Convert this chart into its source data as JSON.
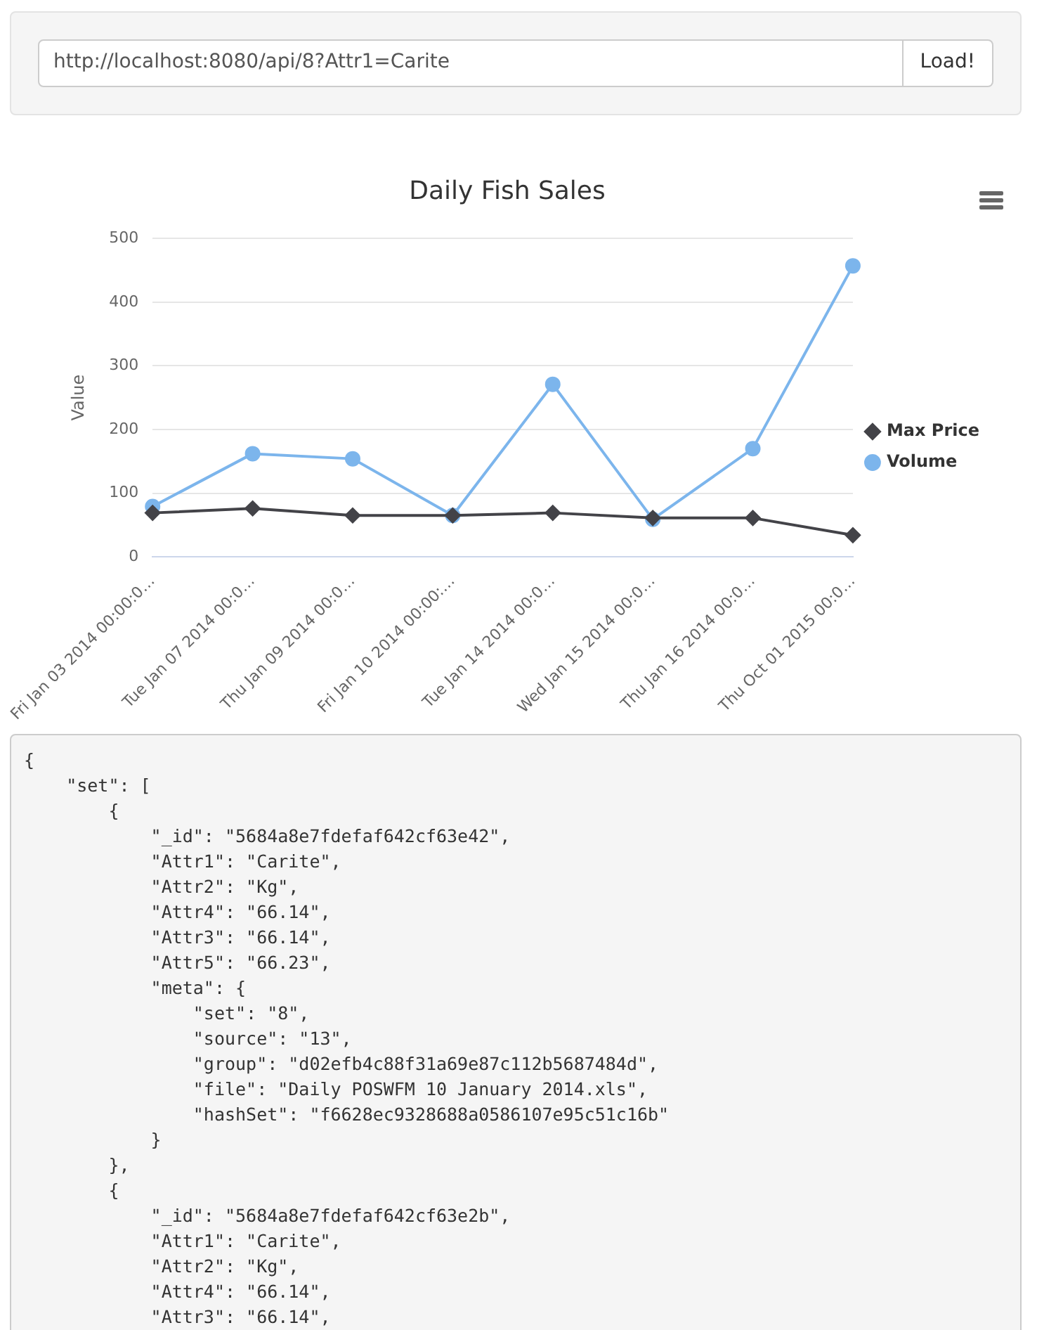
{
  "chart_data": [
    {
      "type": "other",
      "annotations": [
        "http://localhost:8080/api/8?Attr1=Carite",
        "Load!"
      ]
    },
    {
      "type": "line",
      "title": "Daily Fish Sales",
      "ylabel": "Value",
      "categories": [
        "Fri Jan 03 2014 00:00:0…",
        "Tue Jan 07 2014 00:0…",
        "Thu Jan 09 2014 00:0…",
        "Fri Jan 10 2014 00:00:…",
        "Tue Jan 14 2014 00:0…",
        "Wed Jan 15 2014 00:0…",
        "Thu Jan 16 2014 00:0…",
        "Thu Oct 01 2015 00:0…"
      ],
      "series": [
        {
          "name": "Volume",
          "color": "#7cb5ec",
          "marker": "circle",
          "values": [
            79,
            162,
            154,
            65,
            271,
            59,
            170,
            457
          ]
        },
        {
          "name": "Max Price",
          "color": "#434348",
          "marker": "diamond",
          "values": [
            69,
            76,
            65,
            65,
            69,
            61,
            61,
            34
          ]
        }
      ],
      "ylim": [
        0,
        500
      ],
      "yticks": [
        0,
        100,
        200,
        300,
        400,
        500
      ],
      "grid": "y",
      "legend": "right",
      "line_style": "solid"
    },
    {
      "type": "other",
      "annotations": [
        "{",
        "    \"set\": [",
        "        {",
        "            \"_id\": \"5684a8e7fdefaf642cf63e42\",",
        "            \"Attr1\": \"Carite\",",
        "            \"Attr2\": \"Kg\",",
        "            \"Attr4\": \"66.14\",",
        "            \"Attr3\": \"66.14\",",
        "            \"Attr5\": \"66.23\",",
        "            \"meta\": {",
        "                \"set\": \"8\",",
        "                \"source\": \"13\",",
        "                \"group\": \"d02efb4c88f31a69e87c112b5687484d\",",
        "                \"file\": \"Daily POSWFM 10 January 2014.xls\",",
        "                \"hashSet\": \"f6628ec9328688a0586107e95c51c16b\"",
        "            }",
        "        },",
        "        {",
        "            \"_id\": \"5684a8e7fdefaf642cf63e2b\",",
        "            \"Attr1\": \"Carite\",",
        "            \"Attr2\": \"Kg\",",
        "            \"Attr4\": \"66.14\",",
        "            \"Attr3\": \"66.14\","
      ]
    }
  ]
}
